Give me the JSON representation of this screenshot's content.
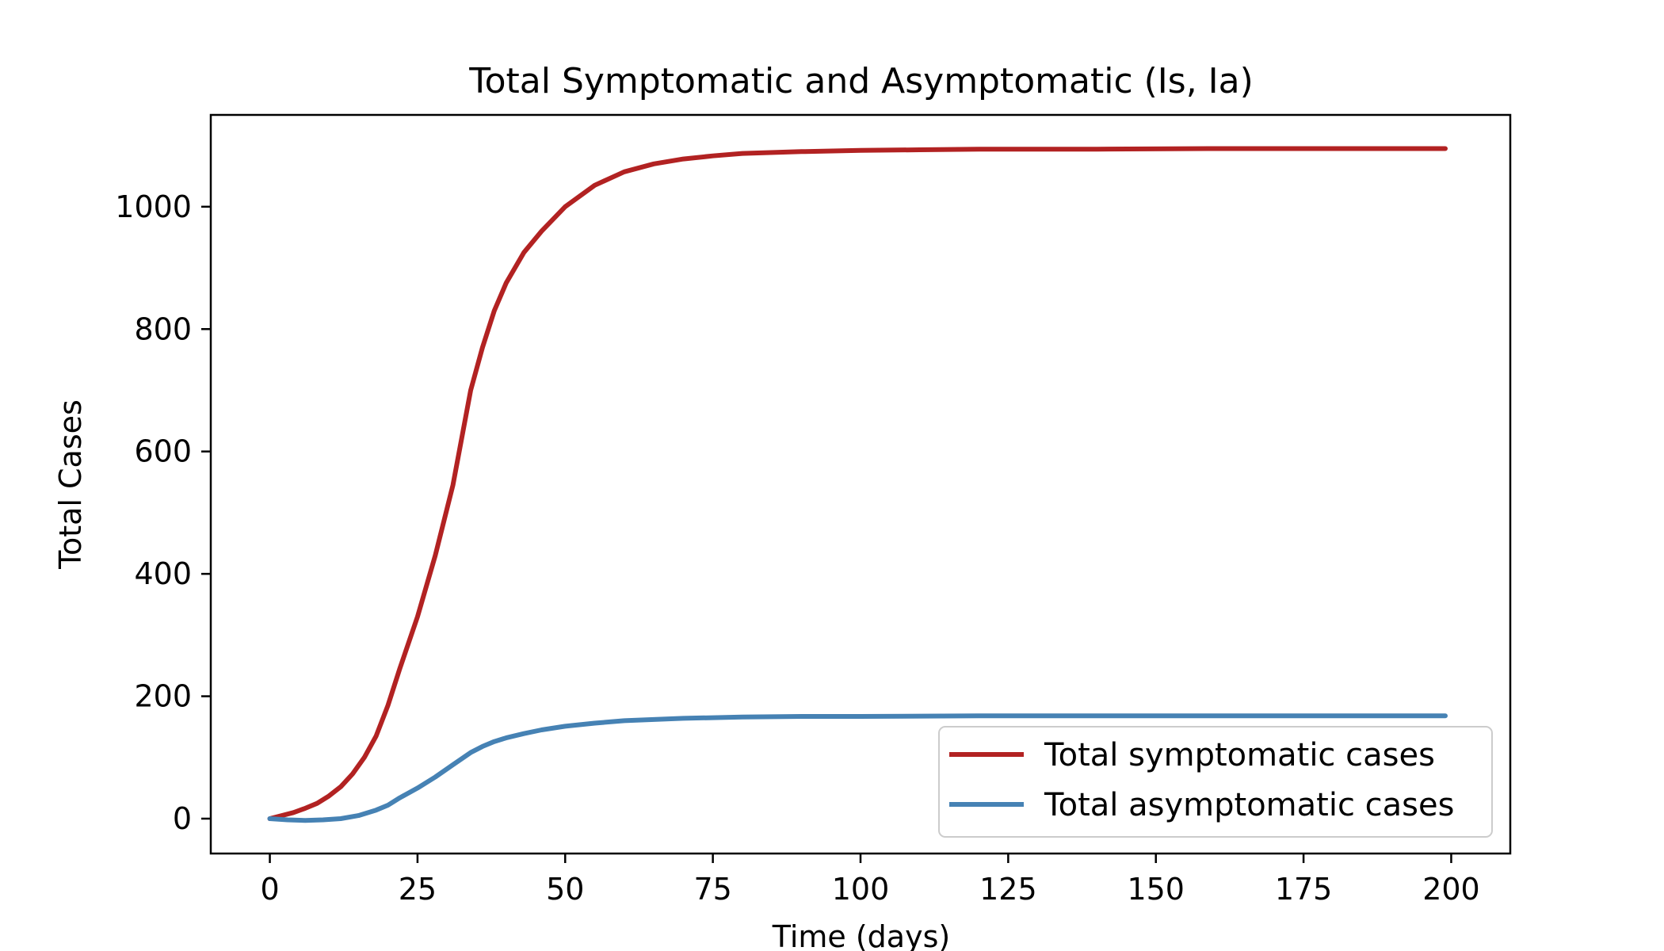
{
  "chart_data": {
    "type": "line",
    "title": "Total Symptomatic and Asymptomatic (Is, Ia)",
    "xlabel": "Time (days)",
    "ylabel": "Total Cases",
    "xlim": [
      -10,
      210
    ],
    "ylim": [
      -57,
      1150
    ],
    "xticks": [
      0,
      25,
      50,
      75,
      100,
      125,
      150,
      175,
      200
    ],
    "yticks": [
      0,
      200,
      400,
      600,
      800,
      1000
    ],
    "grid": false,
    "legend_position": "lower-right",
    "series": [
      {
        "name": "Total symptomatic cases",
        "color": "#b22222",
        "x": [
          0,
          2,
          4,
          6,
          8,
          10,
          12,
          14,
          16,
          18,
          20,
          22,
          25,
          28,
          31,
          34,
          36,
          38,
          40,
          43,
          46,
          50,
          55,
          60,
          65,
          70,
          75,
          80,
          90,
          100,
          110,
          120,
          140,
          160,
          180,
          199
        ],
        "y": [
          0,
          5,
          10,
          17,
          25,
          37,
          52,
          73,
          100,
          135,
          185,
          245,
          330,
          430,
          545,
          700,
          770,
          830,
          875,
          925,
          960,
          1000,
          1035,
          1057,
          1070,
          1078,
          1083,
          1087,
          1090,
          1092,
          1093,
          1094,
          1094,
          1095,
          1095,
          1095
        ]
      },
      {
        "name": "Total asymptomatic cases",
        "color": "#4682b4",
        "x": [
          0,
          3,
          6,
          9,
          12,
          15,
          18,
          20,
          22,
          25,
          28,
          31,
          34,
          36,
          38,
          40,
          43,
          46,
          50,
          55,
          60,
          65,
          70,
          80,
          90,
          100,
          120,
          140,
          160,
          180,
          199
        ],
        "y": [
          0,
          -2,
          -3,
          -2,
          0,
          5,
          14,
          22,
          34,
          50,
          68,
          88,
          108,
          118,
          126,
          132,
          139,
          145,
          151,
          156,
          160,
          162,
          164,
          166,
          167,
          167,
          168,
          168,
          168,
          168,
          168
        ]
      }
    ]
  }
}
